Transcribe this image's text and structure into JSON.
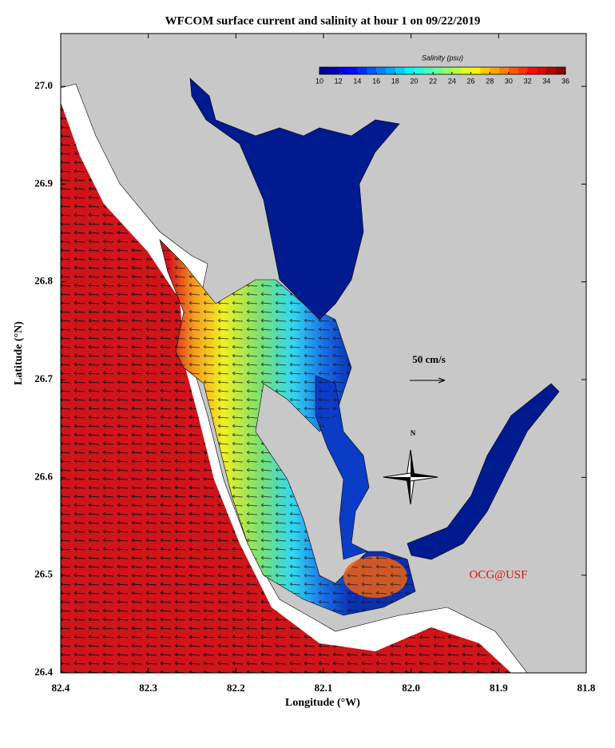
{
  "title": "WFCOM surface current and salinity at hour 1 on 09/22/2019",
  "map": {
    "xlabel": "Longitude (°W)",
    "ylabel": "Latitude (°N)",
    "xlim": [
      82.4,
      81.8
    ],
    "ylim": [
      26.4,
      27.054
    ],
    "xticks": [
      82.4,
      82.3,
      82.2,
      82.1,
      {
        "value": 82,
        "label": "82.0"
      },
      81.9,
      81.8
    ],
    "yticks": [
      26.4,
      26.5,
      26.6,
      26.7,
      26.8,
      26.9,
      {
        "value": 27,
        "label": "27.0"
      }
    ]
  },
  "colorbar": {
    "label": "Salinity (psu)",
    "range": [
      10,
      36
    ],
    "ticks": [
      10,
      12,
      14,
      16,
      18,
      20,
      22,
      24,
      26,
      28,
      30,
      32,
      34,
      36
    ]
  },
  "scale_label": "50 cm/s",
  "north_label": "N",
  "credit": "OCG@USF"
}
